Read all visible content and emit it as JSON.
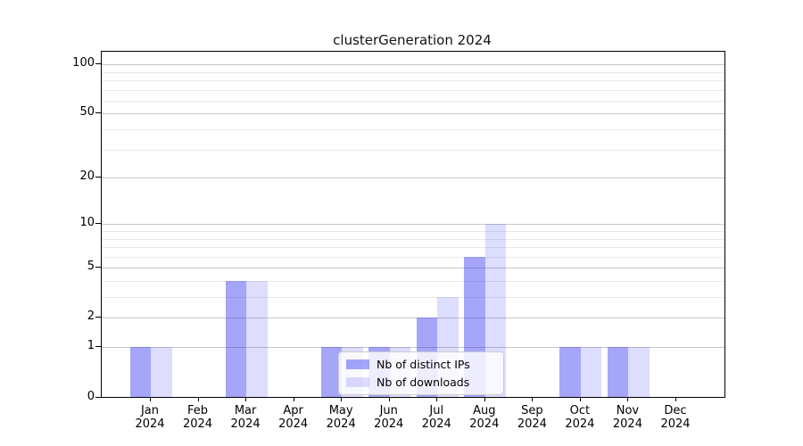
{
  "chart_data": {
    "type": "bar",
    "title": "clusterGeneration 2024",
    "categories": [
      {
        "label": "Jan",
        "sublabel": "2024"
      },
      {
        "label": "Feb",
        "sublabel": "2024"
      },
      {
        "label": "Mar",
        "sublabel": "2024"
      },
      {
        "label": "Apr",
        "sublabel": "2024"
      },
      {
        "label": "May",
        "sublabel": "2024"
      },
      {
        "label": "Jun",
        "sublabel": "2024"
      },
      {
        "label": "Jul",
        "sublabel": "2024"
      },
      {
        "label": "Aug",
        "sublabel": "2024"
      },
      {
        "label": "Sep",
        "sublabel": "2024"
      },
      {
        "label": "Oct",
        "sublabel": "2024"
      },
      {
        "label": "Nov",
        "sublabel": "2024"
      },
      {
        "label": "Dec",
        "sublabel": "2024"
      }
    ],
    "series": [
      {
        "name": "Nb of distinct IPs",
        "color": "#1E1EF066",
        "values": [
          1,
          0,
          4,
          0,
          1,
          1,
          2,
          6,
          0,
          1,
          1,
          0
        ]
      },
      {
        "name": "Nb of downloads",
        "color": "#1E1EF026",
        "values": [
          1,
          0,
          4,
          0,
          1,
          1,
          3,
          10,
          0,
          1,
          1,
          0
        ]
      }
    ],
    "yscale": "log1p",
    "ylim": [
      0,
      119.4
    ],
    "y_major_ticks": [
      0,
      1,
      2,
      5,
      10,
      20,
      50,
      100
    ],
    "y_minor_gridlines": [
      3,
      4,
      6,
      7,
      8,
      9,
      30,
      40,
      60,
      70,
      80,
      90
    ],
    "xlabel": "",
    "ylabel": "",
    "grid": true,
    "legend_position": "lower-center-inside",
    "colors": {
      "major_grid": "#c8c8c8",
      "minor_grid": "#e9e9e9",
      "spine": "#000000",
      "background": "#ffffff"
    }
  }
}
